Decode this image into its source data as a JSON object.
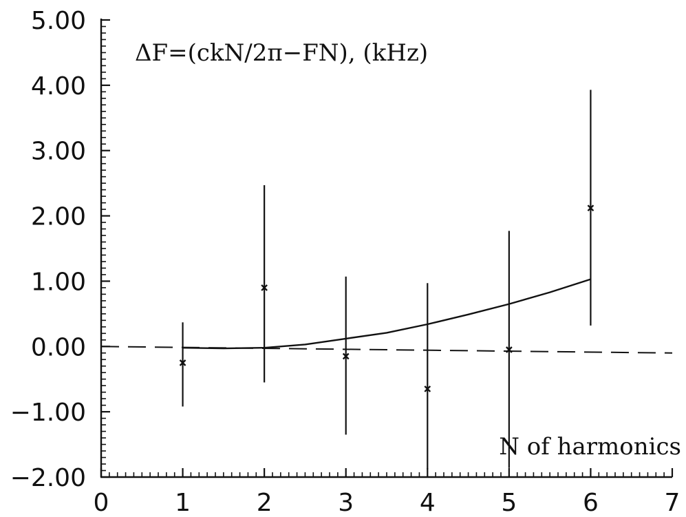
{
  "chart_data": {
    "type": "scatter",
    "title": "ΔF=(ckN/2π−FN), (kHz)",
    "xlabel": "N of harmonics",
    "ylabel": "",
    "xlim": [
      0,
      7
    ],
    "ylim": [
      -2.0,
      5.0
    ],
    "x_ticks": [
      "0",
      "1",
      "2",
      "3",
      "4",
      "5",
      "6",
      "7"
    ],
    "y_ticks": [
      "−2.00",
      "−1.00",
      "0.00",
      "1.00",
      "2.00",
      "3.00",
      "4.00",
      "5.00"
    ],
    "series": [
      {
        "kind": "points_with_error_bars",
        "marker": "x",
        "points": [
          {
            "x": 1,
            "y": -0.25,
            "ylow": -0.92,
            "yhigh": 0.37
          },
          {
            "x": 2,
            "y": 0.9,
            "ylow": -0.55,
            "yhigh": 2.47
          },
          {
            "x": 3,
            "y": -0.15,
            "ylow": -1.35,
            "yhigh": 1.07
          },
          {
            "x": 4,
            "y": -0.65,
            "ylow": -1.88,
            "yhigh": 0.97
          },
          {
            "x": 5,
            "y": -0.05,
            "ylow": -1.86,
            "yhigh": 1.77
          },
          {
            "x": 6,
            "y": 2.12,
            "ylow": 0.32,
            "yhigh": 3.93
          }
        ]
      },
      {
        "kind": "line",
        "style": "solid",
        "x": [
          1,
          1.5,
          2,
          2.5,
          3,
          3.5,
          4,
          4.5,
          5,
          5.5,
          6
        ],
        "y": [
          -0.02,
          -0.03,
          -0.02,
          0.03,
          0.12,
          0.21,
          0.34,
          0.49,
          0.65,
          0.83,
          1.03
        ]
      },
      {
        "kind": "line",
        "style": "dashed",
        "x": [
          0,
          7
        ],
        "y": [
          0.0,
          -0.1
        ]
      }
    ]
  }
}
